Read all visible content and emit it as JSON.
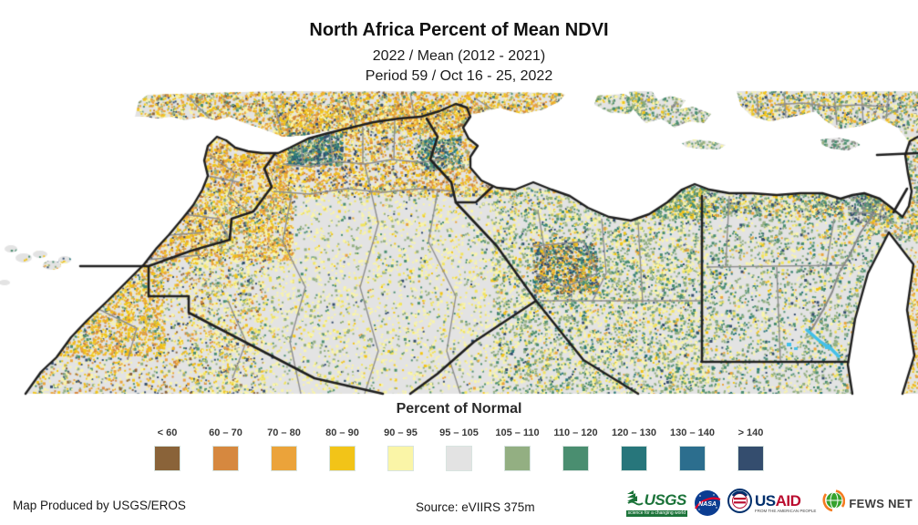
{
  "header": {
    "title": "North Africa Percent of Mean NDVI",
    "subtitle1": "2022 / Mean (2012 - 2021)",
    "subtitle2": "Period 59 / Oct 16 - 25, 2022"
  },
  "legend": {
    "title": "Percent of Normal",
    "classes": [
      {
        "label": "< 60",
        "color": "#8A6339"
      },
      {
        "label": "60 – 70",
        "color": "#D6883F"
      },
      {
        "label": "70 – 80",
        "color": "#EBA33A"
      },
      {
        "label": "80 – 90",
        "color": "#F2C418"
      },
      {
        "label": "90 – 95",
        "color": "#FAF5A7"
      },
      {
        "label": "95 – 105",
        "color": "#E3E3E3"
      },
      {
        "label": "105 – 110",
        "color": "#93AF82"
      },
      {
        "label": "110 – 120",
        "color": "#4A8E70"
      },
      {
        "label": "120 – 130",
        "color": "#27767B"
      },
      {
        "label": "130 – 140",
        "color": "#2C6E8E"
      },
      {
        "label": "> 140",
        "color": "#344D6E"
      }
    ]
  },
  "map": {
    "palette": {
      "sea": "#FFFFFF",
      "land": "#E3E3E3",
      "country_border": "#1F1F1F",
      "admin_border": "#8F8F8F",
      "brown": "#8A6339",
      "orange": "#D6883F",
      "amber": "#EBA33A",
      "gold": "#F2C418",
      "yellow": "#F2E45C",
      "pale_yellow": "#FAF5A7",
      "sage": "#93AF82",
      "green": "#4A8E70",
      "teal": "#27767B",
      "steel_blue": "#2C6E8E",
      "navy": "#344D6E",
      "cyan": "#43C0E8",
      "urban": "#8A8A8A"
    }
  },
  "footer": {
    "produced_by": "Map Produced by USGS/EROS",
    "source": "Source: eVIIRS 375m",
    "logos": {
      "usgs": {
        "name": "USGS",
        "tagline": "science for a changing world",
        "green": "#1B7339"
      },
      "nasa": {
        "name": "NASA",
        "blue": "#0B3D91",
        "red": "#E4002B"
      },
      "usaid": {
        "us": "US",
        "aid": "AID",
        "tagline": "FROM THE AMERICAN PEOPLE",
        "blue": "#002F6C",
        "red": "#BA0C2F"
      },
      "fewsnet": {
        "name": "FEWS NET",
        "green": "#36A22D",
        "orange": "#F47B20"
      }
    }
  }
}
